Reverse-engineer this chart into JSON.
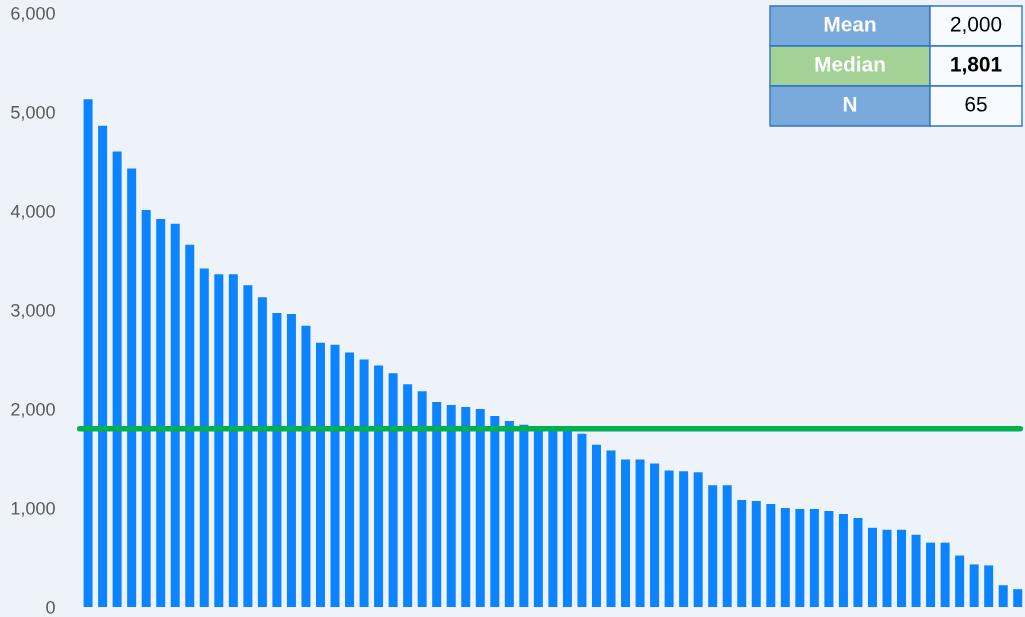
{
  "chart_data": {
    "type": "bar",
    "categories": [
      null,
      null,
      null,
      null,
      null,
      null,
      null,
      null,
      null,
      null,
      null,
      null,
      null,
      null,
      null,
      null,
      null,
      null,
      null,
      null,
      null,
      null,
      null,
      null,
      null,
      null,
      null,
      null,
      null,
      null,
      null,
      null,
      null,
      null,
      null,
      null,
      null,
      null,
      null,
      null,
      null,
      null,
      null,
      null,
      null,
      null,
      null,
      null,
      null,
      null,
      null,
      null,
      null,
      null,
      null,
      null,
      null,
      null,
      null,
      null,
      null,
      null,
      null,
      null,
      null
    ],
    "values": [
      5130,
      4860,
      4600,
      4430,
      4010,
      3920,
      3870,
      3660,
      3420,
      3360,
      3360,
      3250,
      3130,
      2970,
      2960,
      2840,
      2670,
      2650,
      2570,
      2500,
      2440,
      2360,
      2250,
      2180,
      2070,
      2040,
      2020,
      2000,
      1930,
      1880,
      1840,
      1810,
      1800,
      1800,
      1750,
      1640,
      1580,
      1490,
      1490,
      1450,
      1380,
      1370,
      1360,
      1230,
      1230,
      1080,
      1070,
      1040,
      1000,
      990,
      990,
      970,
      940,
      900,
      800,
      780,
      780,
      730,
      650,
      650,
      520,
      430,
      420,
      220,
      180
    ],
    "color": "#0d84ff",
    "ylim": [
      0,
      6000
    ],
    "yticks": [
      0,
      {
        "value": 1000,
        "label": "1,000"
      },
      {
        "value": 2000,
        "label": "2,000"
      },
      {
        "value": 3000,
        "label": "3,000"
      },
      {
        "value": 4000,
        "label": "4,000"
      },
      {
        "value": 5000,
        "label": "5,000"
      },
      {
        "value": 6000,
        "label": "6,000"
      }
    ],
    "ref_lines": [
      {
        "axis": "y",
        "value": 1801,
        "color": "#00b050"
      }
    ],
    "annotations": [
      "Mean",
      "2,000",
      "Median",
      "1,801",
      "N",
      "65"
    ],
    "grid": false
  }
}
